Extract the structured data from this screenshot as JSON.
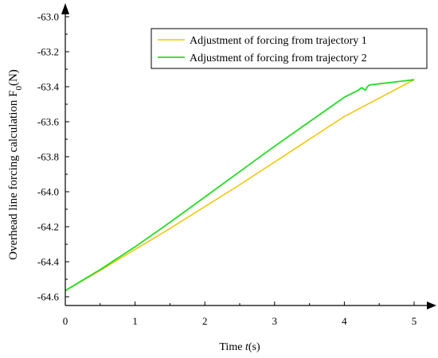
{
  "chart_data": {
    "type": "line",
    "title": "",
    "xlabel_prefix": "Time ",
    "xlabel_var": "t",
    "xlabel_suffix": "(s)",
    "ylabel_main": "Overhead line forcing calculation  F",
    "ylabel_sub": "0",
    "ylabel_unit": "(N)",
    "xlim": [
      0,
      5
    ],
    "ylim": [
      -64.65,
      -62.95
    ],
    "xticks": [
      0,
      1,
      2,
      3,
      4,
      5
    ],
    "xtick_labels": [
      "0",
      "1",
      "2",
      "3",
      "4",
      "5"
    ],
    "yticks": [
      -64.6,
      -64.4,
      -64.2,
      -64.0,
      -63.8,
      -63.6,
      -63.4,
      -63.2,
      -63.0
    ],
    "ytick_labels": [
      "-64.6",
      "-64.4",
      "-64.2",
      "-64.0",
      "-63.8",
      "-63.6",
      "-63.4",
      "-63.2",
      "-63.0"
    ],
    "grid": false,
    "legend_position": "top-right",
    "series": [
      {
        "name": "Adjustment of forcing from trajectory 1",
        "color": "#f5c400",
        "x": [
          0,
          0.5,
          1,
          1.5,
          2,
          2.5,
          3,
          3.5,
          4,
          4.5,
          5
        ],
        "y": [
          -64.565,
          -64.45,
          -64.33,
          -64.21,
          -64.085,
          -63.96,
          -63.83,
          -63.7,
          -63.57,
          -63.465,
          -63.36
        ]
      },
      {
        "name": "Adjustment of forcing from trajectory 2",
        "color": "#22dd22",
        "x": [
          0,
          0.5,
          1,
          1.5,
          2,
          2.5,
          3,
          3.5,
          4,
          4.2,
          4.25,
          4.3,
          4.33,
          4.36,
          5
        ],
        "y": [
          -64.565,
          -64.445,
          -64.315,
          -64.175,
          -64.03,
          -63.885,
          -63.74,
          -63.6,
          -63.46,
          -63.42,
          -63.405,
          -63.42,
          -63.4,
          -63.39,
          -63.36
        ]
      }
    ]
  }
}
